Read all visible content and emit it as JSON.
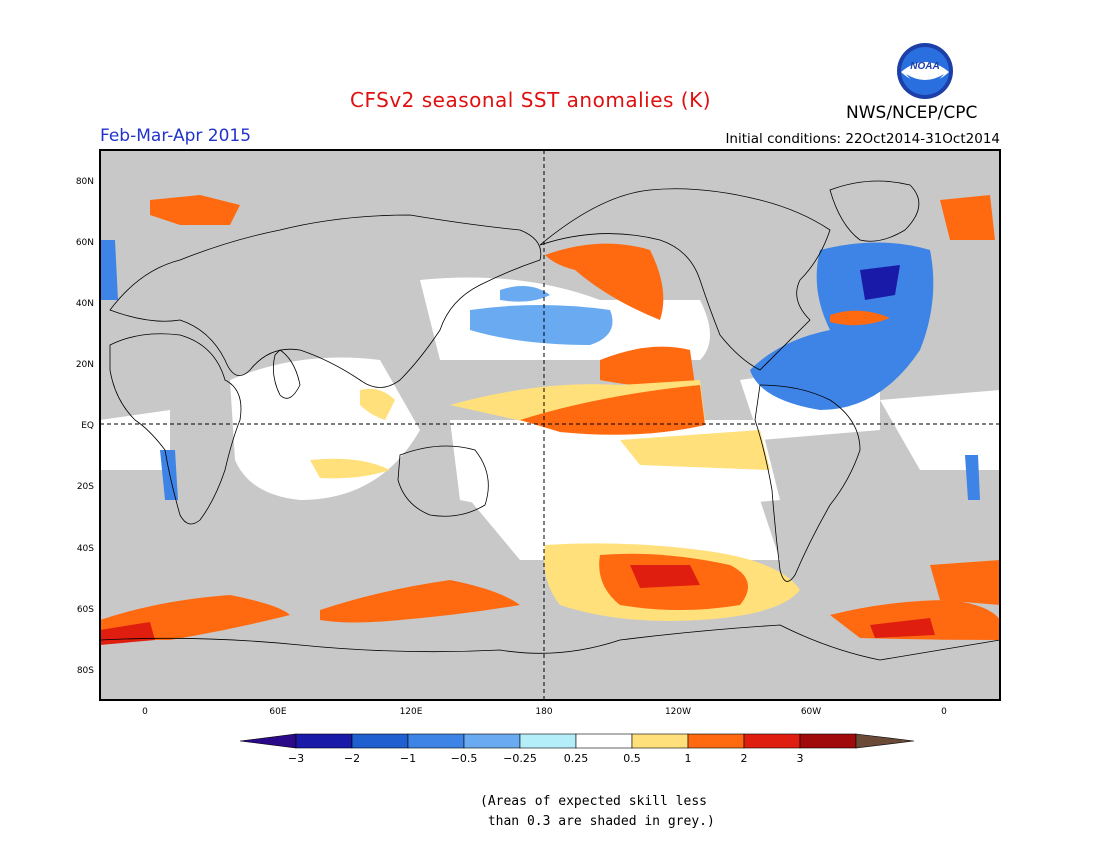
{
  "title": "CFSv2 seasonal SST anomalies (K)",
  "period": "Feb-Mar-Apr 2015",
  "initial_conditions": "Initial conditions: 22Oct2014-31Oct2014",
  "organization": "NWS/NCEP/CPC",
  "logo_text": "NOAA",
  "lat_labels": [
    "80N",
    "60N",
    "40N",
    "20N",
    "EQ",
    "20S",
    "40S",
    "60S",
    "80S"
  ],
  "lon_labels": [
    "0",
    "60E",
    "120E",
    "180",
    "120W",
    "60W",
    "0"
  ],
  "colorbar": {
    "labels": [
      "-3",
      "-2",
      "-1",
      "-0.5",
      "-0.25",
      "0.25",
      "0.5",
      "1",
      "2",
      "3"
    ],
    "colors": [
      "#1a1aa8",
      "#1f5fd0",
      "#3d84e6",
      "#6aaaf0",
      "#b4eef8",
      "#ffffff",
      "#ffe07a",
      "#ff6a10",
      "#e01e10",
      "#a00a0a"
    ],
    "under_color": "#2a0a88",
    "over_color": "#6b4a38"
  },
  "footnote_line1": "(Areas of expected skill less",
  "footnote_line2": " than 0.3 are shaded in grey.)",
  "colors": {
    "grey": "#c8c8c8",
    "land": "#c8c8c8"
  }
}
